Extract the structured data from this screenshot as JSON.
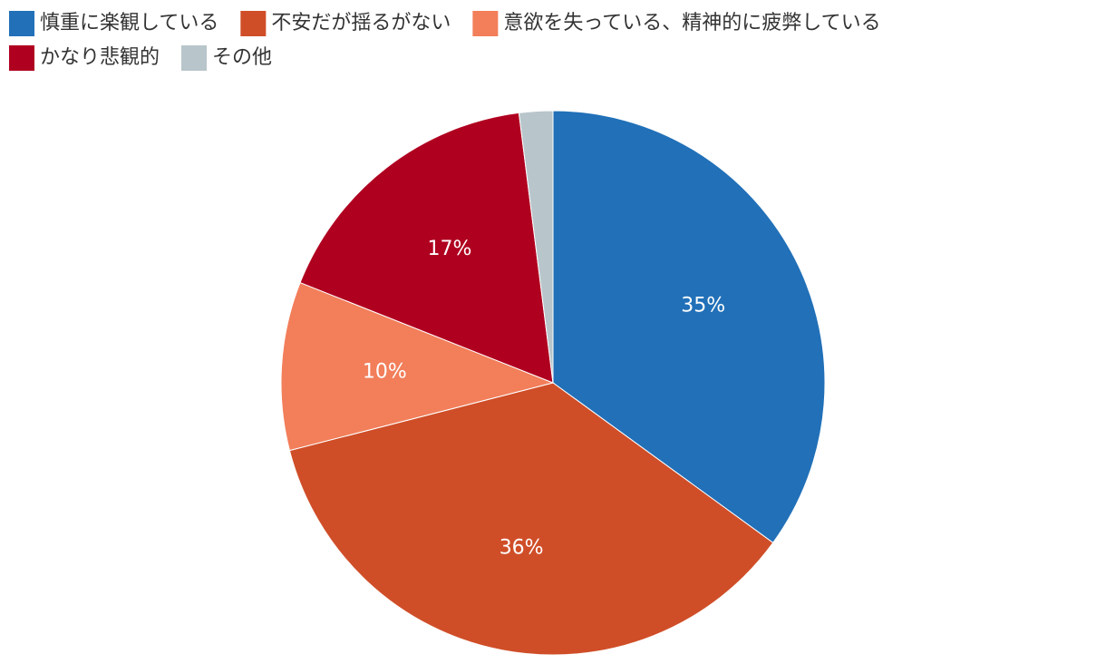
{
  "chart_data": {
    "type": "pie",
    "categories": [
      "慎重に楽観している",
      "不安だが揺るがない",
      "意欲を失っている、精神的に疲弊している",
      "かなり悲観的",
      "その他"
    ],
    "values": [
      35,
      36,
      10,
      17,
      2
    ],
    "value_labels": [
      "35%",
      "36%",
      "10%",
      "17%",
      null
    ],
    "colors": [
      "#2170b8",
      "#cf4e28",
      "#f27e5a",
      "#b00020",
      "#b8c5ca"
    ],
    "legend": "top-left"
  }
}
